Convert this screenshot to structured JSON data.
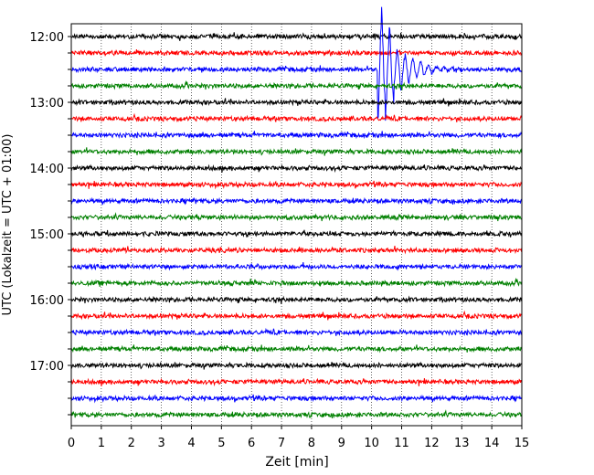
{
  "chart_data": {
    "type": "line",
    "title": "",
    "xlabel": "Zeit  [min]",
    "ylabel": "UTC (Lokalzeit = UTC + 01:00)",
    "xlim": [
      0,
      15
    ],
    "x_ticks": [
      "0",
      "1",
      "2",
      "3",
      "4",
      "5",
      "6",
      "7",
      "8",
      "9",
      "10",
      "11",
      "12",
      "13",
      "14",
      "15"
    ],
    "y_ticks": [
      "12:00",
      "13:00",
      "14:00",
      "15:00",
      "16:00",
      "17:00"
    ],
    "y_start": "12:00",
    "trace_interval_min": 15,
    "trace_count": 24,
    "grid": "vertical dotted at each minute",
    "trace_colors": [
      "#000000",
      "#ff0000",
      "#0000ff",
      "#008000"
    ],
    "event": {
      "trace_index": 2,
      "x_min": 10.2,
      "description_visible": false
    }
  }
}
